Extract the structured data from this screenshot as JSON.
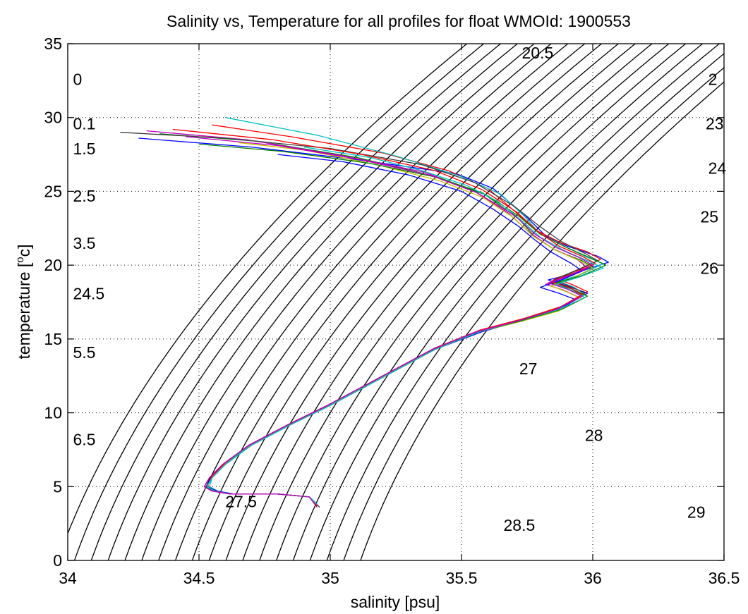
{
  "chart_data": {
    "type": "line",
    "title": "Salinity vs, Temperature for all profiles for float WMOId: 1900553",
    "xlabel": "salinity [psu]",
    "ylabel_parts": [
      "temperature [",
      "o",
      "c]"
    ],
    "xlim": [
      34,
      36.5
    ],
    "ylim": [
      0,
      35
    ],
    "xticks": [
      "34",
      "34.5",
      "35",
      "35.5",
      "36",
      "36.5"
    ],
    "yticks": [
      "0",
      "5",
      "10",
      "15",
      "20",
      "25",
      "30",
      "35"
    ],
    "grid": true,
    "density_contours": {
      "color": "#000000",
      "levels": [
        20,
        20.5,
        21,
        21.5,
        22,
        22.5,
        23,
        23.5,
        24,
        24.5,
        25,
        25.5,
        26,
        26.5,
        27,
        27.5,
        28,
        28.5,
        29
      ],
      "labels": [
        {
          "text": "20.5",
          "s": 35.73,
          "t": 34.0
        },
        {
          "text": "0",
          "s": 34.02,
          "t": 32.2
        },
        {
          "text": "2",
          "s": 36.44,
          "t": 32.2
        },
        {
          "text": "0.1",
          "s": 34.02,
          "t": 29.2
        },
        {
          "text": "23",
          "s": 36.43,
          "t": 29.2
        },
        {
          "text": "1.5",
          "s": 34.02,
          "t": 27.5
        },
        {
          "text": "24",
          "s": 36.44,
          "t": 26.2
        },
        {
          "text": "2.5",
          "s": 34.02,
          "t": 24.3
        },
        {
          "text": "25",
          "s": 36.41,
          "t": 22.9
        },
        {
          "text": "3.5",
          "s": 34.02,
          "t": 21.1
        },
        {
          "text": "26",
          "s": 36.41,
          "t": 19.4
        },
        {
          "text": "24.5",
          "s": 34.02,
          "t": 17.7
        },
        {
          "text": "5.5",
          "s": 34.02,
          "t": 13.7
        },
        {
          "text": "27",
          "s": 35.72,
          "t": 12.6
        },
        {
          "text": "6.5",
          "s": 34.02,
          "t": 7.8
        },
        {
          "text": "28",
          "s": 35.97,
          "t": 8.1
        },
        {
          "text": "27.5",
          "s": 34.6,
          "t": 3.6
        },
        {
          "text": "28.5",
          "s": 35.66,
          "t": 2.0
        },
        {
          "text": "29",
          "s": 36.36,
          "t": 2.9
        }
      ]
    },
    "series": [
      {
        "color": "#0000ff",
        "x": [
          34.27,
          34.7,
          35.12,
          35.48,
          35.62,
          35.74,
          35.82,
          35.9,
          36.02,
          36.06,
          35.94,
          35.83,
          35.9,
          35.98,
          35.88,
          35.74,
          35.58,
          35.4,
          35.2,
          35.0,
          34.85,
          34.7,
          34.6,
          34.55,
          34.53,
          34.56,
          34.62,
          34.8,
          34.92,
          34.95
        ],
        "y": [
          28.6,
          28.0,
          27.1,
          26.2,
          25.2,
          23.4,
          22.0,
          21.3,
          20.6,
          20.2,
          19.5,
          19.0,
          18.6,
          18.1,
          17.1,
          16.3,
          15.5,
          14.3,
          12.4,
          10.5,
          9.2,
          7.8,
          6.5,
          5.6,
          5.0,
          4.7,
          4.5,
          4.5,
          4.3,
          3.7
        ]
      },
      {
        "color": "#008000",
        "x": [
          34.35,
          34.72,
          35.1,
          35.38,
          35.58,
          35.72,
          35.78,
          35.86,
          35.96,
          36.0,
          35.9,
          35.84,
          35.92,
          35.96,
          35.86,
          35.72,
          35.56,
          35.39,
          35.19,
          34.99,
          34.84,
          34.69,
          34.59,
          34.54,
          34.52,
          34.55,
          34.62,
          34.8,
          34.92,
          34.95
        ],
        "y": [
          28.9,
          28.4,
          27.3,
          26.1,
          24.9,
          23.1,
          21.9,
          21.0,
          20.3,
          19.9,
          19.3,
          18.8,
          18.4,
          17.9,
          17.0,
          16.3,
          15.5,
          14.3,
          12.4,
          10.5,
          9.2,
          7.8,
          6.5,
          5.6,
          5.0,
          4.7,
          4.5,
          4.5,
          4.3,
          3.8
        ]
      },
      {
        "color": "#ff0000",
        "x": [
          34.55,
          34.85,
          35.2,
          35.45,
          35.6,
          35.7,
          35.78,
          35.88,
          35.98,
          36.03,
          35.95,
          35.86,
          35.92,
          35.98,
          35.88,
          35.74,
          35.57,
          35.4,
          35.2,
          35.0,
          34.85,
          34.7,
          34.6,
          34.55,
          34.53,
          34.57,
          34.63,
          34.8,
          34.92,
          34.95
        ],
        "y": [
          29.5,
          28.7,
          27.6,
          26.4,
          25.2,
          23.7,
          22.4,
          21.5,
          20.9,
          20.4,
          19.7,
          19.1,
          18.7,
          18.2,
          17.2,
          16.4,
          15.6,
          14.4,
          12.5,
          10.6,
          9.3,
          7.9,
          6.6,
          5.7,
          5.1,
          4.7,
          4.5,
          4.5,
          4.3,
          3.6
        ]
      },
      {
        "color": "#00bfbf",
        "x": [
          34.6,
          34.95,
          35.25,
          35.5,
          35.65,
          35.74,
          35.8,
          35.9,
          35.97,
          36.04,
          35.96,
          35.87,
          35.93,
          35.97,
          35.87,
          35.73,
          35.57,
          35.39,
          35.19,
          34.99,
          34.84,
          34.69,
          34.6,
          34.55,
          34.54,
          34.57,
          34.63,
          34.8,
          34.92,
          34.95
        ],
        "y": [
          30.0,
          28.8,
          27.4,
          26.0,
          24.8,
          23.3,
          22.1,
          21.2,
          20.6,
          20.1,
          19.4,
          18.9,
          18.5,
          18.0,
          17.1,
          16.3,
          15.5,
          14.3,
          12.4,
          10.5,
          9.2,
          7.8,
          6.5,
          5.6,
          5.0,
          4.7,
          4.5,
          4.5,
          4.3,
          3.7
        ]
      },
      {
        "color": "#bf00bf",
        "x": [
          34.3,
          34.68,
          35.05,
          35.36,
          35.55,
          35.68,
          35.76,
          35.85,
          35.94,
          35.98,
          35.9,
          35.82,
          35.89,
          35.95,
          35.86,
          35.73,
          35.56,
          35.39,
          35.19,
          34.99,
          34.84,
          34.69,
          34.59,
          34.54,
          34.52,
          34.55,
          34.62,
          34.8,
          34.92,
          34.95
        ],
        "y": [
          29.1,
          28.5,
          27.4,
          26.3,
          25.0,
          23.5,
          22.2,
          21.1,
          20.4,
          19.8,
          19.2,
          18.7,
          18.3,
          17.8,
          17.0,
          16.3,
          15.5,
          14.3,
          12.4,
          10.5,
          9.2,
          7.8,
          6.5,
          5.6,
          5.0,
          4.7,
          4.5,
          4.5,
          4.3,
          3.7
        ]
      },
      {
        "color": "#bfbf00",
        "x": [
          34.65,
          34.9,
          35.18,
          35.42,
          35.58,
          35.7,
          35.77,
          35.86,
          35.95,
          36.0,
          35.92,
          35.84,
          35.9,
          35.96,
          35.87,
          35.73,
          35.57,
          35.4,
          35.2,
          35.0,
          34.85,
          34.7,
          34.6,
          34.55,
          34.53,
          34.56,
          34.62,
          34.8,
          34.92,
          34.95
        ],
        "y": [
          28.3,
          27.8,
          26.8,
          25.7,
          24.6,
          23.2,
          22.0,
          21.0,
          20.3,
          19.8,
          19.1,
          18.6,
          18.2,
          17.7,
          16.9,
          16.2,
          15.5,
          14.3,
          12.4,
          10.5,
          9.2,
          7.8,
          6.5,
          5.6,
          5.0,
          4.7,
          4.5,
          4.5,
          4.3,
          3.8
        ]
      },
      {
        "color": "#404040",
        "x": [
          34.2,
          34.6,
          35.0,
          35.35,
          35.55,
          35.7,
          35.8,
          35.88,
          35.97,
          36.02,
          35.93,
          35.85,
          35.91,
          35.97,
          35.87,
          35.73,
          35.57,
          35.39,
          35.19,
          34.99,
          34.84,
          34.69,
          34.59,
          34.54,
          34.52,
          34.56,
          34.62,
          34.8,
          34.92,
          34.96
        ],
        "y": [
          29.0,
          28.6,
          27.9,
          26.8,
          25.6,
          24.0,
          22.6,
          21.6,
          20.8,
          20.3,
          19.6,
          19.0,
          18.6,
          18.1,
          17.1,
          16.3,
          15.5,
          14.3,
          12.4,
          10.5,
          9.2,
          7.8,
          6.5,
          5.6,
          5.0,
          4.7,
          4.5,
          4.5,
          4.3,
          3.6
        ]
      },
      {
        "color": "#0000ff",
        "x": [
          34.8,
          35.05,
          35.3,
          35.5,
          35.62,
          35.72,
          35.78,
          35.84,
          35.92,
          35.96,
          35.88,
          35.8,
          35.87,
          35.93,
          35.85,
          35.72,
          35.56,
          35.39,
          35.19,
          34.99,
          34.84,
          34.69,
          34.59,
          34.54,
          34.53,
          34.57,
          34.63,
          34.8,
          34.92,
          34.95
        ],
        "y": [
          27.5,
          27.0,
          26.1,
          25.0,
          23.8,
          22.6,
          21.7,
          20.9,
          20.1,
          19.6,
          19.0,
          18.5,
          18.1,
          17.7,
          16.9,
          16.2,
          15.5,
          14.3,
          12.4,
          10.5,
          9.2,
          7.8,
          6.5,
          5.6,
          5.0,
          4.7,
          4.5,
          4.5,
          4.3,
          3.8
        ]
      },
      {
        "color": "#008000",
        "x": [
          34.5,
          34.82,
          35.15,
          35.42,
          35.6,
          35.72,
          35.8,
          35.9,
          35.99,
          36.05,
          35.96,
          35.86,
          35.92,
          35.98,
          35.88,
          35.74,
          35.57,
          35.4,
          35.2,
          35.0,
          34.85,
          34.7,
          34.6,
          34.55,
          34.53,
          34.56,
          34.62,
          34.8,
          34.92,
          34.95
        ],
        "y": [
          28.2,
          27.7,
          26.9,
          25.9,
          24.7,
          23.3,
          22.1,
          21.2,
          20.5,
          20.0,
          19.3,
          18.8,
          18.4,
          17.9,
          17.0,
          16.3,
          15.5,
          14.3,
          12.4,
          10.5,
          9.2,
          7.8,
          6.5,
          5.6,
          5.0,
          4.7,
          4.5,
          4.5,
          4.3,
          3.7
        ]
      },
      {
        "color": "#ff0000",
        "x": [
          34.4,
          34.78,
          35.12,
          35.4,
          35.58,
          35.71,
          35.79,
          35.87,
          35.96,
          36.01,
          35.92,
          35.84,
          35.91,
          35.96,
          35.87,
          35.73,
          35.57,
          35.39,
          35.19,
          34.99,
          34.84,
          34.69,
          34.59,
          34.54,
          34.52,
          34.55,
          34.62,
          34.8,
          34.92,
          34.95
        ],
        "y": [
          29.2,
          28.5,
          27.5,
          26.4,
          25.1,
          23.6,
          22.3,
          21.3,
          20.6,
          20.1,
          19.4,
          18.9,
          18.5,
          18.0,
          17.1,
          16.3,
          15.5,
          14.3,
          12.4,
          10.5,
          9.2,
          7.8,
          6.5,
          5.6,
          5.0,
          4.7,
          4.5,
          4.5,
          4.3,
          3.7
        ]
      },
      {
        "color": "#00bfbf",
        "x": [
          34.9,
          35.15,
          35.35,
          35.52,
          35.64,
          35.73,
          35.8,
          35.89,
          35.98,
          36.04,
          35.95,
          35.86,
          35.92,
          35.97,
          35.87,
          35.73,
          35.57,
          35.4,
          35.2,
          35.0,
          34.85,
          34.7,
          34.6,
          34.55,
          34.53,
          34.56,
          34.62,
          34.8,
          34.92,
          34.95
        ],
        "y": [
          28.0,
          27.3,
          26.4,
          25.4,
          24.3,
          23.0,
          21.9,
          21.0,
          20.3,
          19.8,
          19.2,
          18.7,
          18.3,
          17.8,
          17.0,
          16.3,
          15.5,
          14.3,
          12.4,
          10.5,
          9.2,
          7.8,
          6.5,
          5.6,
          5.0,
          4.7,
          4.5,
          4.5,
          4.3,
          3.8
        ]
      },
      {
        "color": "#bf00bf",
        "x": [
          34.45,
          34.8,
          35.1,
          35.38,
          35.56,
          35.7,
          35.78,
          35.86,
          35.95,
          36.0,
          35.91,
          35.83,
          35.9,
          35.96,
          35.86,
          35.73,
          35.56,
          35.39,
          35.19,
          34.99,
          34.84,
          34.69,
          34.59,
          34.54,
          34.52,
          34.55,
          34.62,
          34.8,
          34.92,
          34.95
        ],
        "y": [
          28.7,
          28.1,
          27.2,
          26.1,
          24.9,
          23.4,
          22.1,
          21.2,
          20.5,
          20.0,
          19.3,
          18.8,
          18.4,
          17.9,
          17.0,
          16.3,
          15.5,
          14.3,
          12.4,
          10.5,
          9.2,
          7.8,
          6.5,
          5.6,
          5.0,
          4.7,
          4.5,
          4.5,
          4.3,
          3.6
        ]
      }
    ]
  }
}
